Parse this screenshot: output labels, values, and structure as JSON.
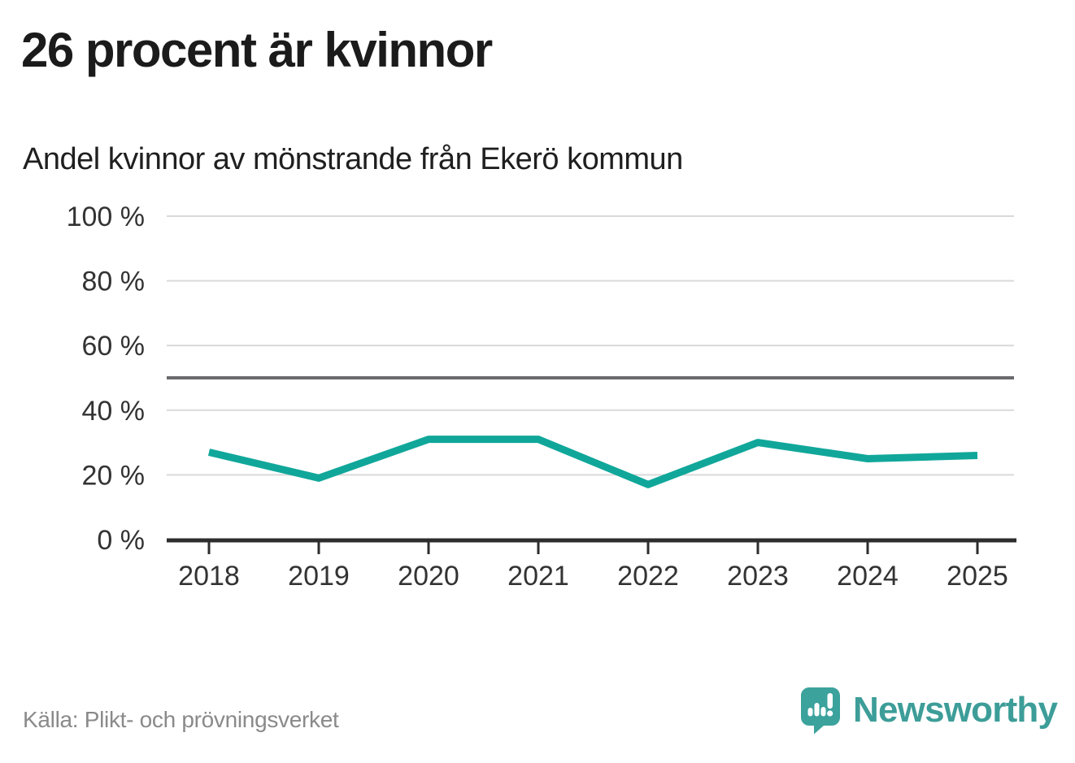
{
  "header": {
    "title": "26 procent är kvinnor",
    "subtitle": "Andel kvinnor av mönstrande från Ekerö kommun"
  },
  "chart_data": {
    "type": "line",
    "title": "Andel kvinnor av mönstrande från Ekerö kommun",
    "x": [
      2018,
      2019,
      2020,
      2021,
      2022,
      2023,
      2024,
      2025
    ],
    "series": [
      {
        "name": "Andel kvinnor av mönstrande",
        "values": [
          27,
          19,
          31,
          31,
          17,
          30,
          25,
          26
        ]
      }
    ],
    "ylim": [
      0,
      100
    ],
    "yticks": [
      0,
      20,
      40,
      60,
      80,
      100
    ],
    "ytick_suffix": " %",
    "xlabel": "",
    "ylabel": "",
    "grid": true,
    "legend": "none",
    "reference_line": {
      "value": 50,
      "color": "#6a6a6f"
    },
    "line_color": "#10a79a",
    "gridline_color": "#d9d9d9",
    "axis_color": "#2d2d2d",
    "label_color": "#333333"
  },
  "footer": {
    "source": "Källa: Plikt- och prövningsverket",
    "brand": "Newsworthy",
    "brand_color": "#3d9d98"
  },
  "icons": {
    "logo": "newsworthy-speech-bubble-bar-chart-icon"
  }
}
